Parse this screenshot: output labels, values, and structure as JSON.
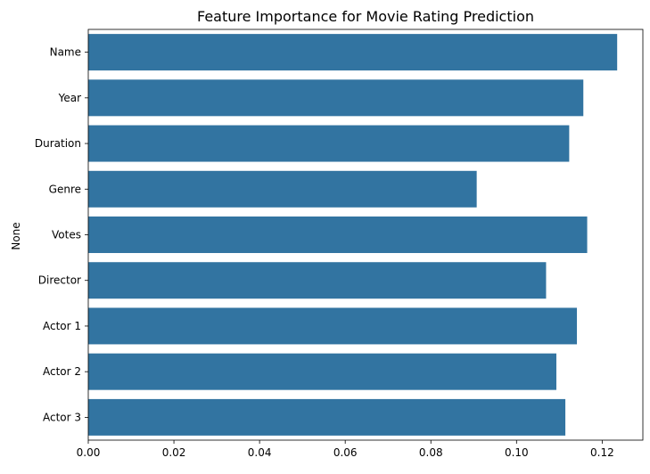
{
  "chart_data": {
    "type": "bar",
    "orientation": "horizontal",
    "title": "Feature Importance for Movie Rating Prediction",
    "xlabel": "",
    "ylabel": "None",
    "categories": [
      "Name",
      "Year",
      "Duration",
      "Genre",
      "Votes",
      "Director",
      "Actor 1",
      "Actor 2",
      "Actor 3"
    ],
    "values": [
      0.1235,
      0.1156,
      0.1123,
      0.0907,
      0.1165,
      0.1069,
      0.1141,
      0.1093,
      0.1114
    ],
    "xlim": [
      0.0,
      0.1295
    ],
    "xticks": [
      0.0,
      0.02,
      0.04,
      0.06,
      0.08,
      0.1,
      0.12
    ],
    "xtick_labels": [
      "0.00",
      "0.02",
      "0.04",
      "0.06",
      "0.08",
      "0.10",
      "0.12"
    ],
    "grid": false,
    "legend": "none",
    "bar_color": "#3274a1"
  }
}
